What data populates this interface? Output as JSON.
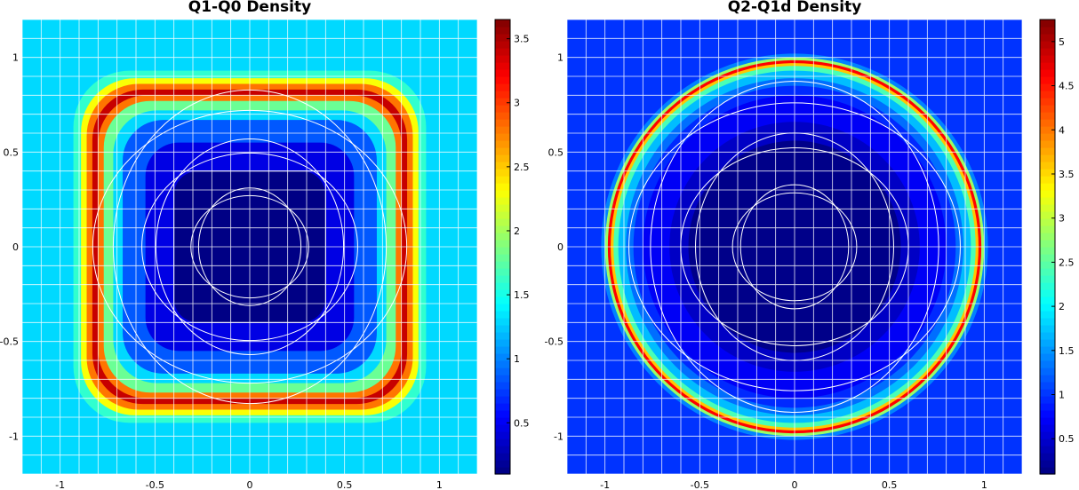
{
  "chart_data": [
    {
      "type": "heatmap",
      "title": "Q1-Q0 Density",
      "shape": "rounded-square",
      "xlim": [
        -1.2,
        1.2
      ],
      "ylim": [
        -1.2,
        1.2
      ],
      "xticks": [
        "-1",
        "-0.5",
        "0",
        "0.5",
        "1"
      ],
      "yticks": [
        "1",
        "0.5",
        "0",
        "-0.5",
        "-1"
      ],
      "colorbar": {
        "range": [
          0.1,
          3.65
        ],
        "ticks": [
          "3.5",
          "3",
          "2.5",
          "2",
          "1.5",
          "1",
          "0.5"
        ],
        "tick_values": [
          3.5,
          3.0,
          2.5,
          2.0,
          1.5,
          1.0,
          0.5
        ],
        "colormap": "jet"
      },
      "background_value": 1.3,
      "inner_square_halfwidth": 0.4,
      "bands": [
        {
          "r": 0.98,
          "value": 1.3
        },
        {
          "r": 0.93,
          "value": 1.6
        },
        {
          "r": 0.89,
          "value": 2.3
        },
        {
          "r": 0.86,
          "value": 2.8
        },
        {
          "r": 0.83,
          "value": 3.4
        },
        {
          "r": 0.8,
          "value": 2.8
        },
        {
          "r": 0.77,
          "value": 1.8
        },
        {
          "r": 0.72,
          "value": 1.3
        },
        {
          "r": 0.67,
          "value": 0.85
        },
        {
          "r": 0.55,
          "value": 0.45
        },
        {
          "r": 0.4,
          "value": 0.12
        }
      ]
    },
    {
      "type": "heatmap",
      "title": "Q2-Q1d Density",
      "shape": "circle",
      "xlim": [
        -1.2,
        1.2
      ],
      "ylim": [
        -1.2,
        1.2
      ],
      "xticks": [
        "-1",
        "-0.5",
        "0",
        "0.5",
        "1"
      ],
      "yticks": [
        "1",
        "0.5",
        "0",
        "-0.5",
        "-1"
      ],
      "colorbar": {
        "range": [
          0.1,
          5.25
        ],
        "ticks": [
          "5",
          "4.5",
          "4",
          "3.5",
          "3",
          "2.5",
          "2",
          "1.5",
          "1",
          "0.5"
        ],
        "tick_values": [
          5,
          4.5,
          4,
          3.5,
          3,
          2.5,
          2,
          1.5,
          1,
          0.5
        ],
        "colormap": "jet"
      },
      "background_value": 1.0,
      "bands": [
        {
          "r": 1.02,
          "value": 1.4
        },
        {
          "r": 1.0,
          "value": 2.8
        },
        {
          "r": 0.985,
          "value": 4.6
        },
        {
          "r": 0.97,
          "value": 3.6
        },
        {
          "r": 0.955,
          "value": 2.4
        },
        {
          "r": 0.93,
          "value": 1.7
        },
        {
          "r": 0.89,
          "value": 1.3
        },
        {
          "r": 0.85,
          "value": 0.95
        },
        {
          "r": 0.8,
          "value": 0.7
        },
        {
          "r": 0.66,
          "value": 0.45
        },
        {
          "r": 0.56,
          "value": 0.15
        }
      ]
    }
  ]
}
